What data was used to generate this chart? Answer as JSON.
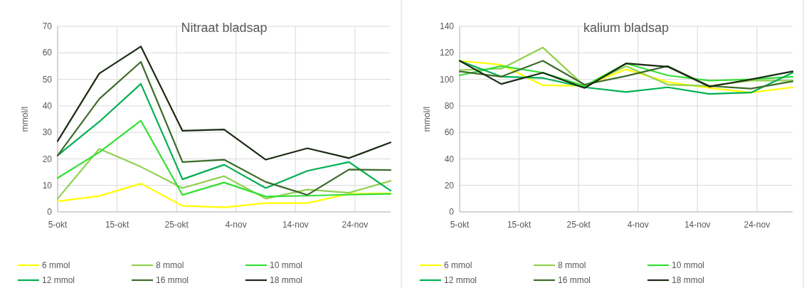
{
  "chart_data": [
    {
      "type": "line",
      "title": "Nitraat bladsap",
      "ylabel": "mmol/l",
      "x": [
        "--10-05",
        "--10-12",
        "--10-19",
        "--10-26",
        "--11-02",
        "--11-09",
        "--11-16",
        "--11-23",
        "--11-30"
      ],
      "xlim": [
        "--10-05",
        "--11-30"
      ],
      "xticks": [
        {
          "value": "--10-05",
          "label": "5-okt"
        },
        {
          "value": "--10-15",
          "label": "15-okt"
        },
        {
          "value": "--10-25",
          "label": "25-okt"
        },
        {
          "value": "--11-04",
          "label": "4-nov"
        },
        {
          "value": "--11-14",
          "label": "14-nov"
        },
        {
          "value": "--11-24",
          "label": "24-nov"
        }
      ],
      "ylim": [
        0,
        70
      ],
      "yticks": [
        0,
        10,
        20,
        30,
        40,
        50,
        60,
        70
      ],
      "grid": true,
      "legend": "bottom",
      "marker": "none",
      "line_style": "solid",
      "series": [
        {
          "name": "6 mmol",
          "color": "#ffff00",
          "values": [
            4,
            6,
            10.7,
            2.3,
            1.7,
            3.3,
            3.3,
            6.8,
            7.0
          ]
        },
        {
          "name": "8 mmol",
          "color": "#92d050",
          "values": [
            5,
            23.8,
            17,
            9,
            13.5,
            5,
            8.4,
            7.2,
            11.7
          ]
        },
        {
          "name": "10 mmol",
          "color": "#33e033",
          "values": [
            12.8,
            22.5,
            34.4,
            6.4,
            11.1,
            5.8,
            6.1,
            6.5,
            6.8
          ]
        },
        {
          "name": "12 mmol",
          "color": "#00b050",
          "values": [
            21.3,
            34,
            48.3,
            12.3,
            17.8,
            9,
            15.5,
            18.8,
            8
          ]
        },
        {
          "name": "16 mmol",
          "color": "#3d6b2a",
          "values": [
            21.3,
            42.6,
            56.6,
            18.8,
            19.7,
            11.3,
            6.4,
            16,
            15.8
          ]
        },
        {
          "name": "18 mmol",
          "color": "#1a2a14",
          "values": [
            26.7,
            52.2,
            62.4,
            30.6,
            31.1,
            19.7,
            24,
            20.3,
            26.2
          ]
        }
      ]
    },
    {
      "type": "line",
      "title": "kalium bladsap",
      "ylabel": "mmol/l",
      "x": [
        "--10-05",
        "--10-12",
        "--10-19",
        "--10-26",
        "--11-02",
        "--11-09",
        "--11-16",
        "--11-23",
        "--11-30"
      ],
      "xlim": [
        "--10-05",
        "--11-30"
      ],
      "xticks": [
        {
          "value": "--10-05",
          "label": "5-okt"
        },
        {
          "value": "--10-15",
          "label": "15-okt"
        },
        {
          "value": "--10-25",
          "label": "25-okt"
        },
        {
          "value": "--11-04",
          "label": "4-nov"
        },
        {
          "value": "--11-14",
          "label": "14-nov"
        },
        {
          "value": "--11-24",
          "label": "24-nov"
        }
      ],
      "ylim": [
        0,
        140
      ],
      "yticks": [
        0,
        20,
        40,
        60,
        80,
        100,
        120,
        140
      ],
      "grid": true,
      "legend": "bottom",
      "marker": "none",
      "line_style": "solid",
      "series": [
        {
          "name": "6 mmol",
          "color": "#ffff00",
          "values": [
            114,
            111,
            95.5,
            95,
            107.5,
            98,
            93.5,
            90,
            94
          ]
        },
        {
          "name": "8 mmol",
          "color": "#92d050",
          "values": [
            107,
            108,
            124,
            95,
            110,
            96,
            95,
            99,
            99
          ]
        },
        {
          "name": "10 mmol",
          "color": "#33e033",
          "values": [
            103,
            110,
            105,
            95,
            112,
            103,
            99,
            100,
            102
          ]
        },
        {
          "name": "12 mmol",
          "color": "#00b050",
          "values": [
            114,
            102,
            101,
            94,
            90.5,
            94,
            89,
            90,
            105
          ]
        },
        {
          "name": "16 mmol",
          "color": "#3d6b2a",
          "values": [
            106,
            102,
            114,
            96,
            102.5,
            110,
            95,
            93,
            98.5
          ]
        },
        {
          "name": "18 mmol",
          "color": "#1a2a14",
          "values": [
            114,
            96.5,
            105,
            93.5,
            112,
            109.5,
            94.5,
            100,
            106
          ]
        }
      ]
    }
  ]
}
